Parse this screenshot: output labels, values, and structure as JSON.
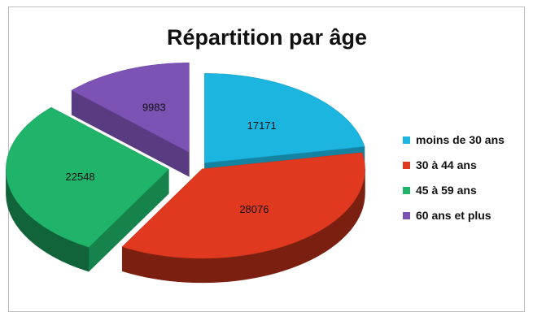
{
  "chart_data": {
    "type": "pie",
    "variant": "3d-exploded",
    "title": "Répartition par âge",
    "categories": [
      "moins de 30 ans",
      "30 à 44 ans",
      "45 à 59 ans",
      "60 ans et plus"
    ],
    "values": [
      17171,
      28076,
      22548,
      9983
    ],
    "colors": [
      "#1cb5e0",
      "#e0391f",
      "#1fb46a",
      "#7c52b5"
    ],
    "data_labels": [
      "17171",
      "28076",
      "22548",
      "9983"
    ],
    "legend_position": "right"
  }
}
